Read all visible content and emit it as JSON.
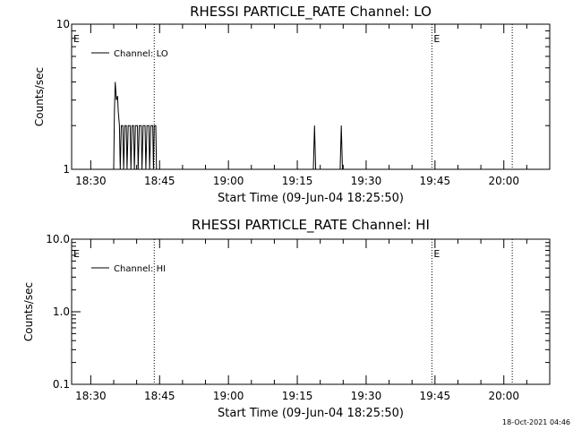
{
  "footer": "18-Oct-2021 04:46",
  "chart_data": [
    {
      "type": "line",
      "title": "RHESSI PARTICLE_RATE Channel: LO",
      "xlabel": "Start Time (09-Jun-04 18:25:50)",
      "ylabel": "Counts/sec",
      "yscale": "log",
      "ylim": [
        1,
        10
      ],
      "yticks": [
        1,
        10
      ],
      "ytick_labels": [
        "1",
        "10"
      ],
      "xlim": [
        "18:25:50",
        "20:10:00"
      ],
      "xticks": [
        "18:30",
        "18:45",
        "19:00",
        "19:15",
        "19:30",
        "19:45",
        "20:00"
      ],
      "grid": false,
      "legend": {
        "position": "top-left",
        "entries": [
          "Channel: LO"
        ]
      },
      "markers": [
        {
          "time": "18:43:50",
          "label": ""
        },
        {
          "time": "19:44:20",
          "label": "E"
        },
        {
          "time": "20:01:50",
          "label": ""
        }
      ],
      "corner_label": "E",
      "series": [
        {
          "name": "Channel: LO",
          "points": [
            [
              "18:35:00",
              1
            ],
            [
              "18:35:10",
              2.5
            ],
            [
              "18:35:20",
              4
            ],
            [
              "18:35:35",
              3
            ],
            [
              "18:35:50",
              3.2
            ],
            [
              "18:36:00",
              2.5
            ],
            [
              "18:36:15",
              2
            ],
            [
              "18:36:25",
              1
            ],
            [
              "18:36:40",
              2
            ],
            [
              "18:37:00",
              2
            ],
            [
              "18:37:10",
              1
            ],
            [
              "18:37:25",
              2
            ],
            [
              "18:37:45",
              2
            ],
            [
              "18:37:55",
              1
            ],
            [
              "18:38:10",
              2
            ],
            [
              "18:38:35",
              2
            ],
            [
              "18:38:45",
              1
            ],
            [
              "18:39:00",
              2
            ],
            [
              "18:39:20",
              2
            ],
            [
              "18:39:30",
              1
            ],
            [
              "18:39:45",
              2
            ],
            [
              "18:40:10",
              2
            ],
            [
              "18:40:20",
              1
            ],
            [
              "18:40:35",
              2
            ],
            [
              "18:41:00",
              2
            ],
            [
              "18:41:10",
              1
            ],
            [
              "18:41:25",
              2
            ],
            [
              "18:41:50",
              2
            ],
            [
              "18:42:00",
              1
            ],
            [
              "18:42:15",
              2
            ],
            [
              "18:42:40",
              2
            ],
            [
              "18:42:50",
              1
            ],
            [
              "18:43:05",
              2
            ],
            [
              "18:43:30",
              2
            ],
            [
              "18:43:40",
              1
            ],
            [
              "18:43:50",
              2
            ],
            [
              "18:44:10",
              2
            ],
            [
              "18:44:20",
              1
            ],
            [
              "19:18:30",
              1
            ],
            [
              "19:18:45",
              2
            ],
            [
              "19:19:00",
              1
            ],
            [
              "19:24:20",
              1
            ],
            [
              "19:24:35",
              2
            ],
            [
              "19:24:50",
              1
            ]
          ]
        }
      ]
    },
    {
      "type": "line",
      "title": "RHESSI PARTICLE_RATE Channel: HI",
      "xlabel": "Start Time (09-Jun-04 18:25:50)",
      "ylabel": "Counts/sec",
      "yscale": "log",
      "ylim": [
        0.1,
        10
      ],
      "yticks": [
        0.1,
        1,
        10
      ],
      "ytick_labels": [
        "0.1",
        "1.0",
        "10.0"
      ],
      "xlim": [
        "18:25:50",
        "20:10:00"
      ],
      "xticks": [
        "18:30",
        "18:45",
        "19:00",
        "19:15",
        "19:30",
        "19:45",
        "20:00"
      ],
      "grid": false,
      "legend": {
        "position": "top-left",
        "entries": [
          "Channel: HI"
        ]
      },
      "markers": [
        {
          "time": "18:43:50",
          "label": ""
        },
        {
          "time": "19:44:20",
          "label": "E"
        },
        {
          "time": "20:01:50",
          "label": ""
        }
      ],
      "corner_label": "E",
      "series": [
        {
          "name": "Channel: HI",
          "points": []
        }
      ]
    }
  ]
}
